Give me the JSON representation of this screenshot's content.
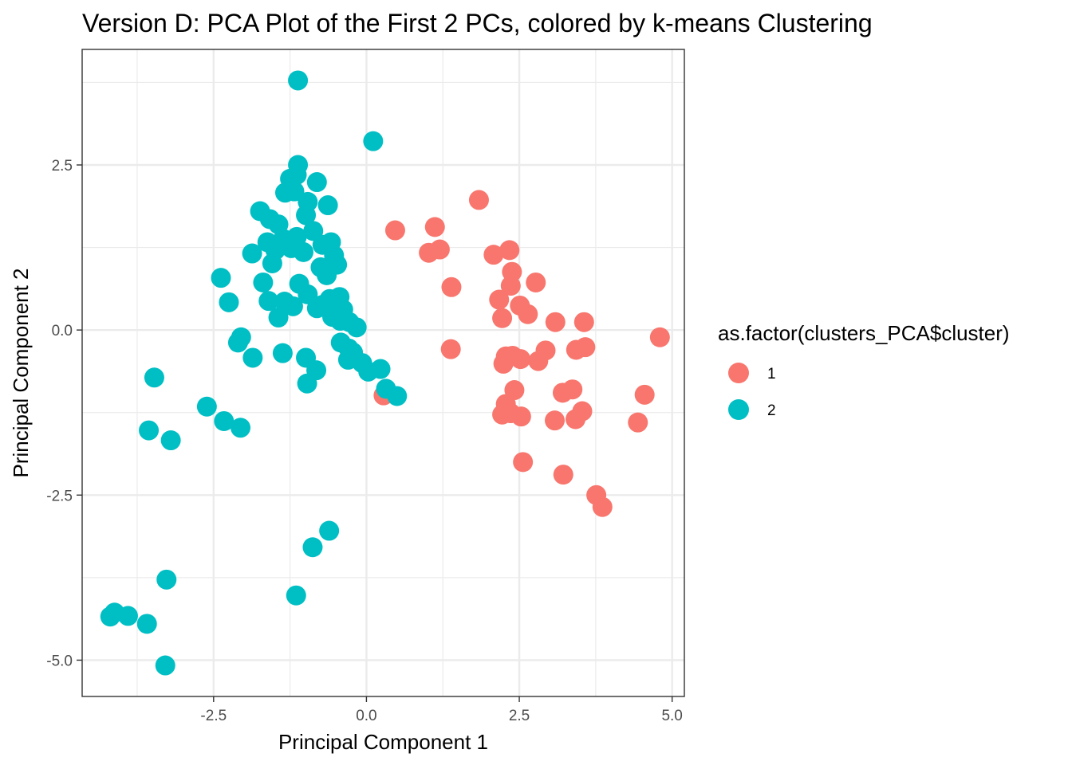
{
  "chart_data": {
    "type": "scatter",
    "title": "Version D: PCA Plot of the First 2 PCs, colored by k-means Clustering",
    "xlabel": "Principal Component 1",
    "ylabel": "Principal Component 2",
    "xlim": [
      -4.65,
      5.2
    ],
    "ylim": [
      -5.55,
      4.25
    ],
    "x_ticks": [
      -2.5,
      0.0,
      2.5,
      5.0
    ],
    "x_tick_labels": [
      "-2.5",
      "0.0",
      "2.5",
      "5.0"
    ],
    "y_ticks": [
      -5.0,
      -2.5,
      0.0,
      2.5
    ],
    "y_tick_labels": [
      "-5.0",
      "-2.5",
      "0.0",
      "2.5"
    ],
    "grid": true,
    "legend": {
      "title": "as.factor(clusters_PCA$cluster)",
      "position": "right"
    },
    "series": [
      {
        "name": "1",
        "color": "#F8766D",
        "points": [
          [
            1.84,
            1.97
          ],
          [
            0.47,
            1.51
          ],
          [
            1.12,
            1.56
          ],
          [
            1.02,
            1.17
          ],
          [
            1.2,
            1.22
          ],
          [
            1.39,
            0.65
          ],
          [
            1.38,
            -0.29
          ],
          [
            0.28,
            -0.99
          ],
          [
            2.08,
            1.14
          ],
          [
            2.34,
            1.21
          ],
          [
            2.38,
            0.88
          ],
          [
            2.36,
            0.67
          ],
          [
            2.77,
            0.72
          ],
          [
            2.17,
            0.46
          ],
          [
            2.51,
            0.37
          ],
          [
            2.64,
            0.24
          ],
          [
            2.22,
            0.18
          ],
          [
            3.09,
            0.12
          ],
          [
            3.56,
            0.12
          ],
          [
            2.28,
            -0.4
          ],
          [
            2.39,
            -0.39
          ],
          [
            2.52,
            -0.44
          ],
          [
            2.24,
            -0.51
          ],
          [
            2.81,
            -0.47
          ],
          [
            2.93,
            -0.31
          ],
          [
            3.43,
            -0.3
          ],
          [
            3.58,
            -0.26
          ],
          [
            4.8,
            -0.11
          ],
          [
            2.42,
            -0.91
          ],
          [
            2.28,
            -1.12
          ],
          [
            2.22,
            -1.28
          ],
          [
            2.36,
            -1.26
          ],
          [
            2.53,
            -1.31
          ],
          [
            3.21,
            -0.95
          ],
          [
            3.37,
            -0.9
          ],
          [
            3.08,
            -1.37
          ],
          [
            3.42,
            -1.35
          ],
          [
            3.53,
            -1.23
          ],
          [
            4.55,
            -0.98
          ],
          [
            4.44,
            -1.4
          ],
          [
            2.56,
            -2.0
          ],
          [
            3.22,
            -2.19
          ],
          [
            3.76,
            -2.5
          ],
          [
            3.86,
            -2.68
          ]
        ]
      },
      {
        "name": "2",
        "color": "#00BFC4",
        "points": [
          [
            -1.12,
            3.78
          ],
          [
            0.11,
            2.86
          ],
          [
            -1.12,
            2.5
          ],
          [
            -1.25,
            2.29
          ],
          [
            -1.14,
            2.35
          ],
          [
            -0.81,
            2.24
          ],
          [
            -1.33,
            2.08
          ],
          [
            -1.18,
            2.1
          ],
          [
            -0.96,
            1.94
          ],
          [
            -0.63,
            1.89
          ],
          [
            -1.74,
            1.8
          ],
          [
            -1.58,
            1.68
          ],
          [
            -0.99,
            1.74
          ],
          [
            -1.44,
            1.6
          ],
          [
            -0.87,
            1.5
          ],
          [
            -1.36,
            1.38
          ],
          [
            -1.62,
            1.33
          ],
          [
            -1.14,
            1.41
          ],
          [
            -0.72,
            1.29
          ],
          [
            -1.87,
            1.16
          ],
          [
            -1.49,
            1.21
          ],
          [
            -1.23,
            1.24
          ],
          [
            -0.58,
            1.33
          ],
          [
            -1.03,
            1.18
          ],
          [
            -0.53,
            1.13
          ],
          [
            -1.54,
            1.01
          ],
          [
            -0.75,
            0.95
          ],
          [
            -0.48,
            0.99
          ],
          [
            -0.65,
            0.83
          ],
          [
            -2.38,
            0.79
          ],
          [
            -1.69,
            0.72
          ],
          [
            -1.1,
            0.7
          ],
          [
            -0.96,
            0.54
          ],
          [
            -0.6,
            0.47
          ],
          [
            -0.44,
            0.5
          ],
          [
            -2.25,
            0.42
          ],
          [
            -1.6,
            0.44
          ],
          [
            -1.34,
            0.43
          ],
          [
            -1.2,
            0.36
          ],
          [
            -0.81,
            0.33
          ],
          [
            -0.72,
            0.38
          ],
          [
            -0.38,
            0.31
          ],
          [
            -0.56,
            0.2
          ],
          [
            -0.43,
            0.14
          ],
          [
            -0.28,
            0.12
          ],
          [
            -1.44,
            0.19
          ],
          [
            -0.16,
            0.04
          ],
          [
            -2.05,
            -0.11
          ],
          [
            -2.1,
            -0.19
          ],
          [
            -0.42,
            -0.19
          ],
          [
            -0.29,
            -0.28
          ],
          [
            -0.22,
            -0.34
          ],
          [
            -1.86,
            -0.42
          ],
          [
            -1.37,
            -0.35
          ],
          [
            -0.99,
            -0.42
          ],
          [
            -0.07,
            -0.5
          ],
          [
            -0.3,
            -0.45
          ],
          [
            -0.82,
            -0.61
          ],
          [
            0.03,
            -0.63
          ],
          [
            0.23,
            -0.59
          ],
          [
            -0.97,
            -0.81
          ],
          [
            0.32,
            -0.89
          ],
          [
            0.5,
            -1.0
          ],
          [
            -3.47,
            -0.72
          ],
          [
            -2.61,
            -1.16
          ],
          [
            -2.33,
            -1.38
          ],
          [
            -2.06,
            -1.48
          ],
          [
            -3.56,
            -1.52
          ],
          [
            -3.2,
            -1.67
          ],
          [
            -0.61,
            -3.04
          ],
          [
            -0.88,
            -3.29
          ],
          [
            -3.27,
            -3.78
          ],
          [
            -1.15,
            -4.02
          ],
          [
            -4.12,
            -4.28
          ],
          [
            -4.19,
            -4.34
          ],
          [
            -3.9,
            -4.33
          ],
          [
            -3.59,
            -4.45
          ],
          [
            -3.29,
            -5.08
          ]
        ]
      }
    ]
  }
}
